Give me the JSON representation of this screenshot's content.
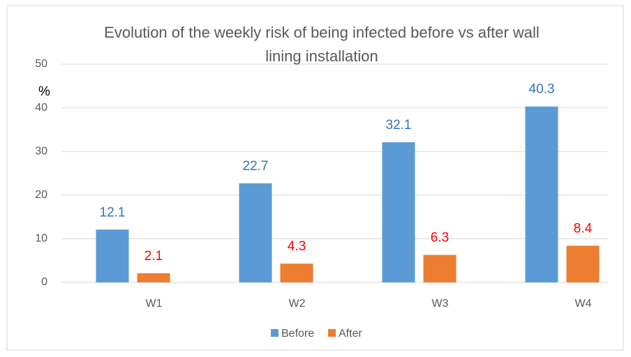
{
  "chart_data": {
    "type": "bar",
    "title": "Evolution of the weekly risk of being infected before vs after wall lining installation",
    "ylabel": "%",
    "categories": [
      "W1",
      "W2",
      "W3",
      "W4"
    ],
    "series": [
      {
        "name": "Before",
        "color": "#5b9bd5",
        "label_color": "#2e75b6",
        "values": [
          12.1,
          22.7,
          32.1,
          40.3
        ]
      },
      {
        "name": "After",
        "color": "#ed7d31",
        "label_color": "#ff0000",
        "values": [
          2.1,
          4.3,
          6.3,
          8.4
        ]
      }
    ],
    "ylim": [
      0,
      50
    ],
    "yticks": [
      0,
      10,
      20,
      30,
      40,
      50
    ],
    "grid": true,
    "legend": "bottom"
  }
}
